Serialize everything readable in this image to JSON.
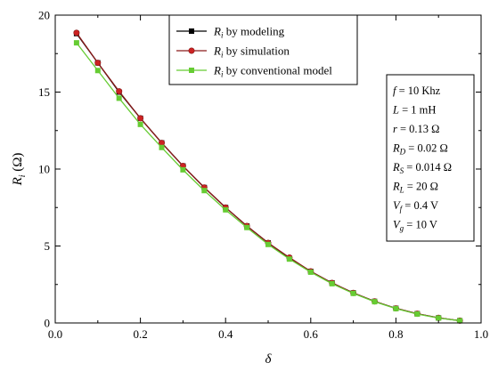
{
  "chart_data": {
    "type": "line",
    "xlabel": "δ",
    "ylabel": "R (Ω)",
    "ylabel_sub": "i",
    "xlim": [
      0.0,
      1.0
    ],
    "ylim": [
      0,
      20
    ],
    "x_ticks": [
      "0.0",
      "0.2",
      "0.4",
      "0.6",
      "0.8",
      "1.0"
    ],
    "y_ticks": [
      "0",
      "5",
      "10",
      "15",
      "20"
    ],
    "x": [
      0.05,
      0.1,
      0.15,
      0.2,
      0.25,
      0.3,
      0.35,
      0.4,
      0.45,
      0.5,
      0.55,
      0.6,
      0.65,
      0.7,
      0.75,
      0.8,
      0.85,
      0.9,
      0.95
    ],
    "series": [
      {
        "name": "R",
        "name_sub": "i",
        "name_suffix": " by modeling",
        "color": "#000000",
        "marker": "square",
        "values": [
          18.8,
          16.9,
          15.0,
          13.3,
          11.7,
          10.2,
          8.8,
          7.5,
          6.3,
          5.2,
          4.2,
          3.35,
          2.6,
          1.95,
          1.4,
          0.95,
          0.6,
          0.33,
          0.15
        ]
      },
      {
        "name": "R",
        "name_sub": "i",
        "name_suffix": " by simulation",
        "color": "#8b1a1a",
        "marker_color": "#cc2222",
        "marker": "circle",
        "values": [
          18.85,
          16.9,
          15.05,
          13.3,
          11.7,
          10.2,
          8.8,
          7.5,
          6.3,
          5.2,
          4.25,
          3.35,
          2.6,
          1.95,
          1.4,
          0.95,
          0.6,
          0.33,
          0.15
        ]
      },
      {
        "name": "R",
        "name_sub": "i",
        "name_suffix": " by conventional model",
        "color": "#66cc33",
        "marker": "square",
        "values": [
          18.2,
          16.4,
          14.6,
          12.9,
          11.4,
          9.95,
          8.6,
          7.35,
          6.2,
          5.1,
          4.15,
          3.3,
          2.55,
          1.92,
          1.38,
          0.93,
          0.58,
          0.32,
          0.14
        ]
      }
    ],
    "legend_position": "top-center",
    "grid": false,
    "parameters": [
      {
        "sym": "f",
        "sub": "",
        "value": " = 10 Khz"
      },
      {
        "sym": "L",
        "sub": "",
        "value": " = 1 mH"
      },
      {
        "sym": "r",
        "sub": "",
        "value": " = 0.13 Ω"
      },
      {
        "sym": "R",
        "sub": "D",
        "value": " = 0.02 Ω"
      },
      {
        "sym": "R",
        "sub": "S",
        "value": " = 0.014 Ω"
      },
      {
        "sym": "R",
        "sub": "L",
        "value": " = 20 Ω"
      },
      {
        "sym": "V",
        "sub": "f",
        "value": " = 0.4 V"
      },
      {
        "sym": "V",
        "sub": "g",
        "value": " = 10 V"
      }
    ]
  }
}
